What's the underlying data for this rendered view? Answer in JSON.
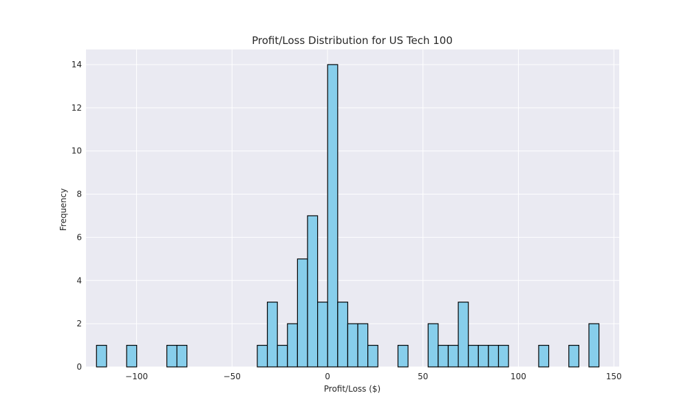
{
  "chart_data": {
    "type": "bar",
    "title": "Profit/Loss Distribution for US Tech 100",
    "xlabel": "Profit/Loss ($)",
    "ylabel": "Frequency",
    "xlim": [
      -126.5,
      152.8
    ],
    "ylim": [
      0,
      14.7
    ],
    "xticks": [
      -100,
      -50,
      0,
      50,
      100,
      150
    ],
    "xtick_labels": [
      "−100",
      "−50",
      "0",
      "50",
      "100",
      "150"
    ],
    "yticks": [
      0,
      2,
      4,
      6,
      8,
      10,
      12,
      14
    ],
    "ytick_labels": [
      "0",
      "2",
      "4",
      "6",
      "8",
      "10",
      "12",
      "14"
    ],
    "grid": true,
    "bin_start": -121.0,
    "bin_width": 5.264,
    "counts": [
      1,
      0,
      0,
      1,
      0,
      0,
      0,
      1,
      1,
      0,
      0,
      0,
      0,
      0,
      0,
      0,
      1,
      3,
      1,
      2,
      5,
      7,
      3,
      14,
      3,
      2,
      2,
      1,
      0,
      0,
      1,
      0,
      0,
      2,
      1,
      1,
      3,
      1,
      1,
      1,
      1,
      0,
      0,
      0,
      1,
      0,
      0,
      1,
      0,
      2
    ],
    "colors": {
      "bar_fill": "#87ceeb",
      "bar_edge": "#000000",
      "plot_background": "#eaeaf2",
      "grid": "#ffffff"
    }
  }
}
